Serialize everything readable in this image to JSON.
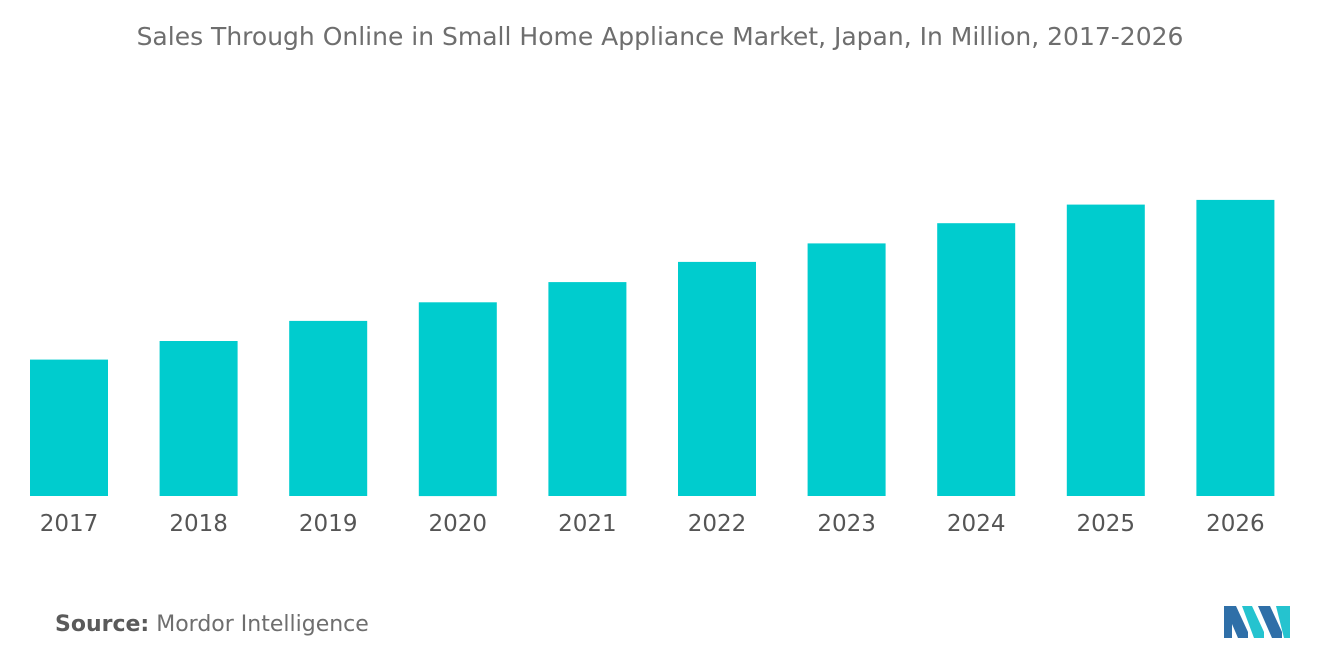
{
  "chart_data": {
    "type": "bar",
    "title": "Sales Through Online in Small Home Appliance Market, Japan, In Million, 2017-2026",
    "categories": [
      "2017",
      "2018",
      "2019",
      "2020",
      "2021",
      "2022",
      "2023",
      "2024",
      "2025",
      "2026"
    ],
    "series": [
      {
        "values": [
          44.0,
          50.0,
          56.5,
          62.5,
          69.0,
          75.5,
          81.5,
          88.0,
          94.0,
          95.5
        ]
      }
    ],
    "xlabel": "",
    "ylabel": "",
    "ylim": [
      0,
      100
    ],
    "grid": false,
    "legend": "none",
    "bar_color": "#00ccce"
  },
  "footer": {
    "source_label": "Source:",
    "source_text": "Mordor Intelligence"
  },
  "logo": {
    "icon": "mordor-intelligence-logo-icon",
    "colors": [
      "#2f6fa8",
      "#25c3cf"
    ]
  }
}
